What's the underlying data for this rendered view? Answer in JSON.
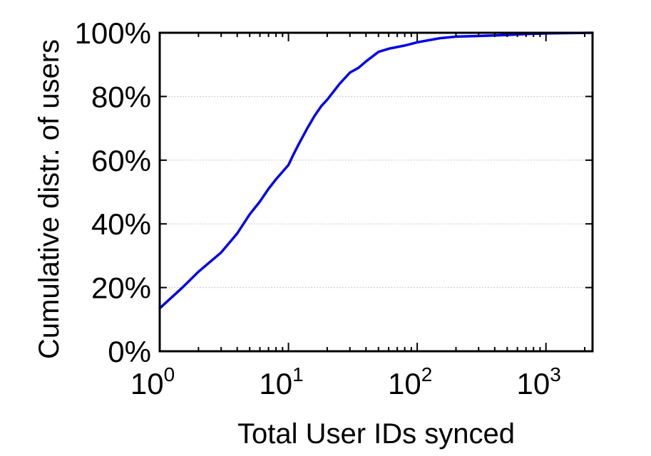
{
  "chart_data": {
    "type": "line",
    "title": "",
    "xlabel": "Total User IDs synced",
    "ylabel": "Cumulative distr. of users",
    "x_scale": "log",
    "xlim": [
      1,
      2300
    ],
    "ylim": [
      0,
      100
    ],
    "grid": "horizontal",
    "legend": "none",
    "x_ticks": [
      {
        "value": 1,
        "base": "10",
        "exp": "0"
      },
      {
        "value": 10,
        "base": "10",
        "exp": "1"
      },
      {
        "value": 100,
        "base": "10",
        "exp": "2"
      },
      {
        "value": 1000,
        "base": "10",
        "exp": "3"
      }
    ],
    "y_ticks": [
      {
        "value": 0,
        "label": "0%"
      },
      {
        "value": 20,
        "label": "20%"
      },
      {
        "value": 40,
        "label": "40%"
      },
      {
        "value": 60,
        "label": "60%"
      },
      {
        "value": 80,
        "label": "80%"
      },
      {
        "value": 100,
        "label": "100%"
      }
    ],
    "series": [
      {
        "color": "#0000ee",
        "points": [
          [
            1,
            13.5
          ],
          [
            1.5,
            20
          ],
          [
            2,
            25
          ],
          [
            3,
            31
          ],
          [
            4,
            37
          ],
          [
            5,
            43
          ],
          [
            6,
            47
          ],
          [
            7,
            51
          ],
          [
            8,
            54
          ],
          [
            10,
            58.5
          ],
          [
            11,
            62
          ],
          [
            12,
            65
          ],
          [
            14,
            70
          ],
          [
            16,
            74
          ],
          [
            18,
            77
          ],
          [
            20,
            79
          ],
          [
            25,
            84
          ],
          [
            30,
            87.5
          ],
          [
            35,
            89
          ],
          [
            40,
            91
          ],
          [
            50,
            94
          ],
          [
            60,
            95
          ],
          [
            80,
            96
          ],
          [
            100,
            97
          ],
          [
            150,
            98.3
          ],
          [
            200,
            98.8
          ],
          [
            300,
            99
          ],
          [
            500,
            99.3
          ],
          [
            700,
            99.6
          ],
          [
            1000,
            99.8
          ],
          [
            2300,
            100
          ]
        ]
      }
    ]
  }
}
